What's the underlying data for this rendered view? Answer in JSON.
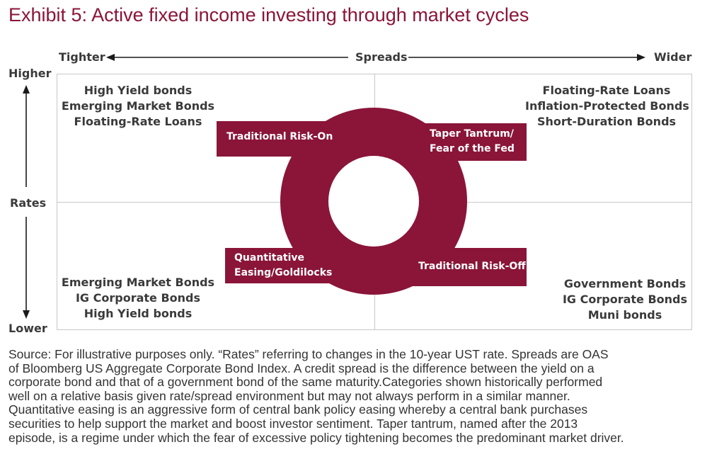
{
  "title": "Exhibit 5: Active fixed income investing through market cycles",
  "axes": {
    "x_left": "Tighter",
    "x_center": "Spreads",
    "x_right": "Wider",
    "y_top": "Higher",
    "y_center": "Rates",
    "y_bottom": "Lower"
  },
  "quadrants": {
    "top_left": [
      "High Yield bonds",
      "Emerging Market Bonds",
      "Floating-Rate Loans"
    ],
    "top_right": [
      "Floating-Rate Loans",
      "Inflation-Protected Bonds",
      "Short-Duration Bonds"
    ],
    "bottom_left": [
      "Emerging Market Bonds",
      "IG Corporate Bonds",
      "High Yield bonds"
    ],
    "bottom_right": [
      "Government Bonds",
      "IG Corporate Bonds",
      "Muni bonds"
    ]
  },
  "cycle_labels": {
    "top_left": [
      "Traditional Risk-On"
    ],
    "top_right": [
      "Taper Tantrum/",
      "Fear of the Fed"
    ],
    "bottom_left": [
      "Quantitative",
      "Easing/Goldilocks"
    ],
    "bottom_right": [
      "Traditional Risk-Off"
    ]
  },
  "source_lines": [
    "Source: For illustrative purposes only. “Rates” referring to changes in the 10-year UST rate. Spreads are OAS",
    "of Bloomberg US Aggregate Corporate Bond Index. A credit spread is the difference between the yield on a",
    "corporate bond and that of a government bond of the same maturity.Categories shown historically performed",
    "well on a relative basis given rate/spread environment but may not always perform in a similar manner.",
    "Quantitative easing is an aggressive form of central bank policy easing whereby a central bank purchases",
    "securities to help support the market and boost investor sentiment. Taper tantrum, named after the 2013",
    "episode, is a regime under which the fear of excessive policy tightening becomes the predominant market driver."
  ],
  "colors": {
    "accent": "#8a1538",
    "grid": "#c8c8c8",
    "text": "#3a3a3a"
  }
}
